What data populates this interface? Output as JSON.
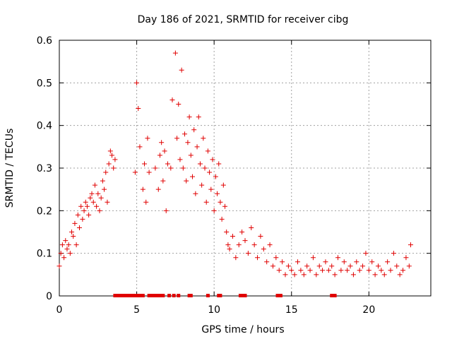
{
  "chart_data": {
    "type": "scatter",
    "title": "Day 186 of 2021, SRMTID for receiver cibg",
    "xlabel": "GPS time / hours",
    "ylabel": "SRMTID / TECUs",
    "xlim": [
      0,
      24
    ],
    "ylim": [
      0,
      0.6
    ],
    "xticks": [
      0,
      5,
      10,
      15,
      20
    ],
    "yticks": [
      0,
      0.1,
      0.2,
      0.3,
      0.4,
      0.5,
      0.6
    ],
    "grid": true,
    "marker": "+",
    "color": "#e00000",
    "series": [
      {
        "name": "SRMTID",
        "x": [
          0.0,
          0.1,
          0.2,
          0.3,
          0.4,
          0.5,
          0.6,
          0.7,
          0.8,
          0.9,
          1.0,
          1.1,
          1.2,
          1.3,
          1.4,
          1.5,
          1.6,
          1.7,
          1.8,
          1.9,
          2.0,
          2.1,
          2.2,
          2.3,
          2.4,
          2.5,
          2.6,
          2.7,
          2.8,
          2.9,
          3.0,
          3.1,
          3.2,
          3.3,
          3.4,
          3.5,
          3.6,
          4.9,
          5.0,
          5.1,
          5.2,
          5.4,
          5.5,
          5.6,
          5.7,
          5.8,
          6.2,
          6.4,
          6.5,
          6.6,
          6.7,
          6.8,
          6.9,
          7.0,
          7.2,
          7.3,
          7.5,
          7.6,
          7.7,
          7.8,
          7.9,
          8.0,
          8.1,
          8.2,
          8.3,
          8.4,
          8.5,
          8.6,
          8.7,
          8.8,
          8.9,
          9.0,
          9.1,
          9.2,
          9.3,
          9.4,
          9.5,
          9.6,
          9.7,
          9.8,
          9.9,
          10.0,
          10.1,
          10.2,
          10.3,
          10.4,
          10.5,
          10.6,
          10.7,
          10.8,
          10.9,
          11.0,
          11.2,
          11.4,
          11.6,
          11.8,
          12.0,
          12.2,
          12.4,
          12.6,
          12.8,
          13.0,
          13.2,
          13.4,
          13.6,
          13.8,
          14.0,
          14.2,
          14.4,
          14.6,
          14.8,
          15.0,
          15.2,
          15.4,
          15.6,
          15.8,
          16.0,
          16.2,
          16.4,
          16.6,
          16.8,
          17.0,
          17.2,
          17.4,
          17.6,
          17.8,
          18.0,
          18.2,
          18.4,
          18.6,
          18.8,
          19.0,
          19.2,
          19.4,
          19.6,
          19.8,
          20.0,
          20.2,
          20.4,
          20.6,
          20.8,
          21.0,
          21.2,
          21.4,
          21.6,
          21.8,
          22.0,
          22.2,
          22.4,
          22.6,
          22.7
        ],
        "y": [
          0.07,
          0.1,
          0.12,
          0.09,
          0.13,
          0.11,
          0.12,
          0.1,
          0.15,
          0.14,
          0.17,
          0.12,
          0.19,
          0.16,
          0.21,
          0.18,
          0.2,
          0.22,
          0.21,
          0.19,
          0.23,
          0.24,
          0.22,
          0.26,
          0.21,
          0.24,
          0.2,
          0.23,
          0.27,
          0.25,
          0.29,
          0.22,
          0.31,
          0.34,
          0.33,
          0.3,
          0.32,
          0.29,
          0.5,
          0.44,
          0.35,
          0.25,
          0.31,
          0.22,
          0.37,
          0.29,
          0.3,
          0.25,
          0.33,
          0.36,
          0.27,
          0.34,
          0.2,
          0.31,
          0.3,
          0.46,
          0.57,
          0.37,
          0.45,
          0.32,
          0.53,
          0.3,
          0.38,
          0.27,
          0.36,
          0.42,
          0.33,
          0.28,
          0.39,
          0.24,
          0.35,
          0.42,
          0.31,
          0.26,
          0.37,
          0.3,
          0.22,
          0.34,
          0.29,
          0.25,
          0.32,
          0.2,
          0.28,
          0.24,
          0.31,
          0.22,
          0.18,
          0.26,
          0.21,
          0.15,
          0.12,
          0.11,
          0.14,
          0.09,
          0.12,
          0.15,
          0.13,
          0.1,
          0.16,
          0.12,
          0.09,
          0.14,
          0.11,
          0.08,
          0.12,
          0.07,
          0.09,
          0.06,
          0.08,
          0.05,
          0.07,
          0.06,
          0.05,
          0.08,
          0.06,
          0.05,
          0.07,
          0.06,
          0.09,
          0.05,
          0.07,
          0.06,
          0.08,
          0.06,
          0.07,
          0.05,
          0.09,
          0.06,
          0.08,
          0.06,
          0.07,
          0.05,
          0.08,
          0.06,
          0.07,
          0.1,
          0.06,
          0.08,
          0.05,
          0.07,
          0.06,
          0.05,
          0.08,
          0.06,
          0.1,
          0.07,
          0.05,
          0.06,
          0.09,
          0.07,
          0.12
        ]
      }
    ],
    "baseline_markers_x": [
      3.6,
      3.8,
      4.0,
      4.1,
      4.2,
      4.3,
      4.4,
      4.5,
      4.6,
      4.7,
      4.8,
      5.0,
      5.1,
      5.2,
      5.3,
      5.4,
      5.8,
      6.0,
      6.1,
      6.2,
      6.3,
      6.4,
      6.5,
      6.6,
      6.7,
      7.1,
      7.4,
      7.7,
      8.4,
      8.5,
      9.6,
      10.3,
      10.4,
      11.7,
      11.8,
      12.0,
      14.1,
      14.2,
      14.3,
      17.6,
      17.7,
      17.8
    ]
  }
}
